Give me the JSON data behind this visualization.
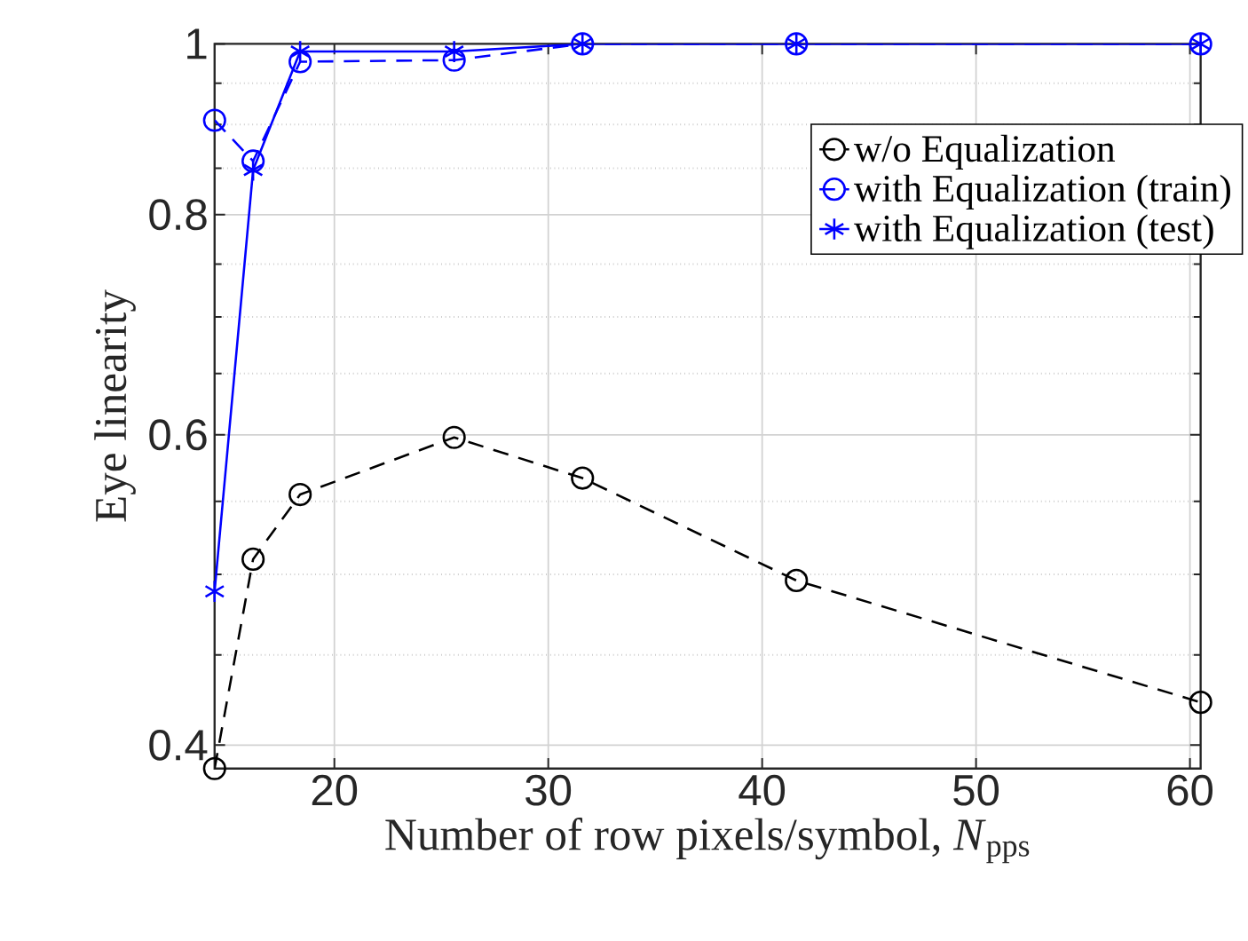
{
  "chart_data": {
    "type": "line",
    "xlabel": "Number of row pixels/symbol, *N*$_{pps}$",
    "ylabel": "Eye linearity",
    "x": [
      14.4,
      16.2,
      18.4,
      25.6,
      31.6,
      41.6,
      60.5
    ],
    "series": [
      {
        "name": "w/o Equalization",
        "color": "#000000",
        "marker": "circle",
        "line_style": "dashed",
        "values": [
          0.388,
          0.51,
          0.555,
          0.598,
          0.567,
          0.496,
          0.423
        ]
      },
      {
        "name": "with Equalization (train)",
        "color": "#0000ff",
        "marker": "circle",
        "line_style": "dashed",
        "values": [
          0.905,
          0.858,
          0.977,
          0.979,
          1,
          1,
          1
        ]
      },
      {
        "name": "with Equalization (test)",
        "color": "#0000ff",
        "marker": "cross",
        "line_style": "solid",
        "values": [
          0.489,
          0.848,
          0.99,
          0.99,
          1,
          1,
          1
        ]
      }
    ],
    "xlim": [
      14.4,
      60.5
    ],
    "xticks": [
      20,
      30,
      40,
      50,
      60
    ],
    "ylim": [
      0.388,
      1
    ],
    "log": "y",
    "yticks": [
      0.4,
      {
        "value": 0.45,
        "label": null
      },
      {
        "value": 0.5,
        "label": null
      },
      {
        "value": 0.55,
        "label": null
      },
      0.6,
      {
        "value": 0.65,
        "label": null
      },
      {
        "value": 0.7,
        "label": null
      },
      {
        "value": 0.75,
        "label": null
      },
      0.8,
      {
        "value": 0.85,
        "label": null
      },
      {
        "value": 0.9,
        "label": null
      },
      {
        "value": 0.95,
        "label": null
      },
      1
    ],
    "grid": true,
    "legend": "top right"
  }
}
